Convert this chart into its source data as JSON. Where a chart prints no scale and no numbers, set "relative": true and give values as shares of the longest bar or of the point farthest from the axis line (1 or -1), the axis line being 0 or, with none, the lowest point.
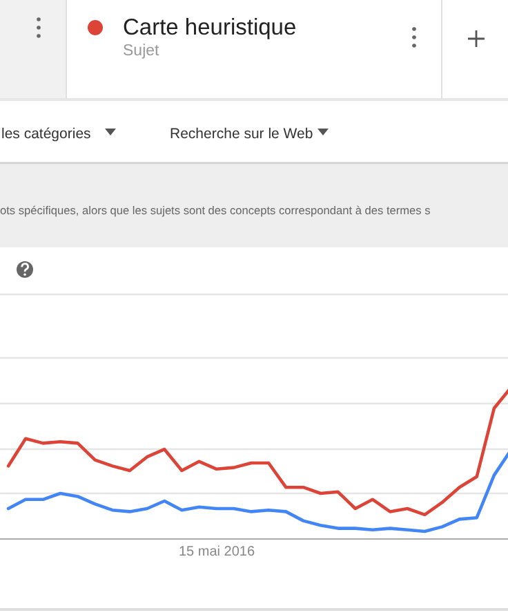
{
  "chart_data": {
    "type": "line",
    "relative": true,
    "grid": "y",
    "legend": "top left",
    "categories": [
      null,
      null,
      null,
      null,
      null,
      null,
      null,
      null,
      null,
      null,
      null,
      null,
      null,
      null,
      null,
      null,
      null,
      null,
      null,
      null,
      null,
      null,
      null,
      null,
      null,
      null,
      null,
      null,
      null,
      null
    ],
    "series": [
      {
        "name": "Carte heuristique",
        "color": "#db4437",
        "values": [
          0.48,
          0.66,
          0.63,
          0.64,
          0.63,
          0.52,
          0.48,
          0.45,
          0.54,
          0.59,
          0.45,
          0.51,
          0.46,
          0.47,
          0.5,
          0.5,
          0.34,
          0.34,
          0.3,
          0.31,
          0.2,
          0.26,
          0.18,
          0.2,
          0.16,
          0.24,
          0.34,
          0.41,
          0.86,
          1
        ]
      },
      {
        "color": "#4285f4",
        "values": [
          0.2,
          0.26,
          0.26,
          0.3,
          0.28,
          0.23,
          0.19,
          0.18,
          0.2,
          0.25,
          0.19,
          0.21,
          0.2,
          0.2,
          0.18,
          0.19,
          0.18,
          0.12,
          0.09,
          0.07,
          0.07,
          0.06,
          0.07,
          0.06,
          0.05,
          0.08,
          0.13,
          0.14,
          0.42,
          0.59
        ]
      }
    ],
    "annotations": [
      "Sujet",
      "les catégories",
      "Recherche sur le Web",
      "ots spécifiques, alors que les sujets sont des concepts correspondant à des termes s",
      "15 mai 2016"
    ]
  }
}
